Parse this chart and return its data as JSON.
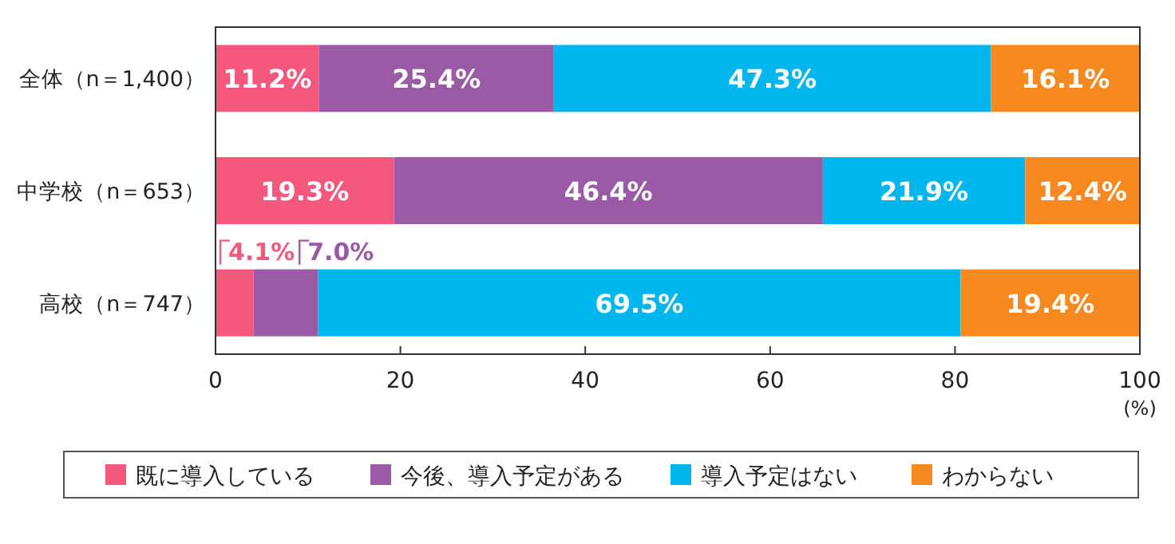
{
  "chart_data": {
    "type": "bar",
    "orientation": "horizontal",
    "stacked": true,
    "categories": [
      "全体（n＝1,400）",
      "中学校（n＝653）",
      "高校（n＝747）"
    ],
    "series": [
      {
        "name": "既に導入している",
        "color": "#f4587c",
        "values": [
          11.2,
          19.3,
          4.1
        ],
        "value_labels": [
          "11.2%",
          "19.3%",
          "4.1%"
        ]
      },
      {
        "name": "今後、導入予定がある",
        "color": "#9b5aa6",
        "values": [
          25.4,
          46.4,
          7.0
        ],
        "value_labels": [
          "25.4%",
          "46.4%",
          "7.0%"
        ]
      },
      {
        "name": "導入予定はない",
        "color": "#00b6ec",
        "values": [
          47.3,
          21.9,
          69.5
        ],
        "value_labels": [
          "47.3%",
          "21.9%",
          "69.5%"
        ]
      },
      {
        "name": "わからない",
        "color": "#f6891f",
        "values": [
          16.1,
          12.4,
          19.4
        ],
        "value_labels": [
          "16.1%",
          "12.4%",
          "19.4%"
        ]
      }
    ],
    "xlim": [
      0,
      100
    ],
    "xticks": [
      0,
      20,
      40,
      60,
      80,
      100
    ],
    "xlabel": "(%)",
    "legend": "bottom",
    "grid": false
  }
}
